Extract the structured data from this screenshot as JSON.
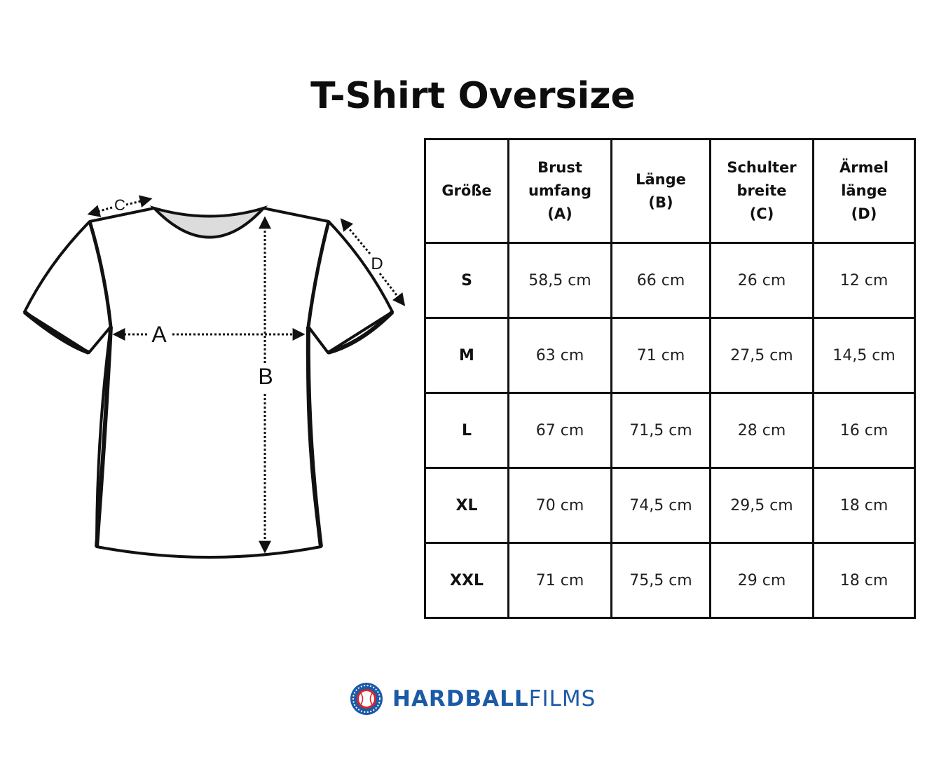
{
  "title": "T-Shirt Oversize",
  "diagram": {
    "labels": {
      "a": "A",
      "b": "B",
      "c": "C",
      "d": "D"
    }
  },
  "table": {
    "headers": [
      [
        "Größe"
      ],
      [
        "Brust",
        "umfang",
        "(A)"
      ],
      [
        "Länge",
        "(B)"
      ],
      [
        "Schulter",
        "breite",
        "(C)"
      ],
      [
        "Ärmel",
        "länge",
        "(D)"
      ]
    ],
    "rows": [
      [
        "S",
        "58,5 cm",
        "66 cm",
        "26 cm",
        "12 cm"
      ],
      [
        "M",
        "63 cm",
        "71 cm",
        "27,5 cm",
        "14,5 cm"
      ],
      [
        "L",
        "67 cm",
        "71,5 cm",
        "28 cm",
        "16 cm"
      ],
      [
        "XL",
        "70 cm",
        "74,5 cm",
        "29,5 cm",
        "18 cm"
      ],
      [
        "XXL",
        "71 cm",
        "75,5 cm",
        "29 cm",
        "18 cm"
      ]
    ]
  },
  "logo": {
    "bold": "HARDBALL",
    "light": "FILMS",
    "icon": "baseball-icon",
    "color": "#1b5aa6",
    "accent": "#d8262c"
  }
}
